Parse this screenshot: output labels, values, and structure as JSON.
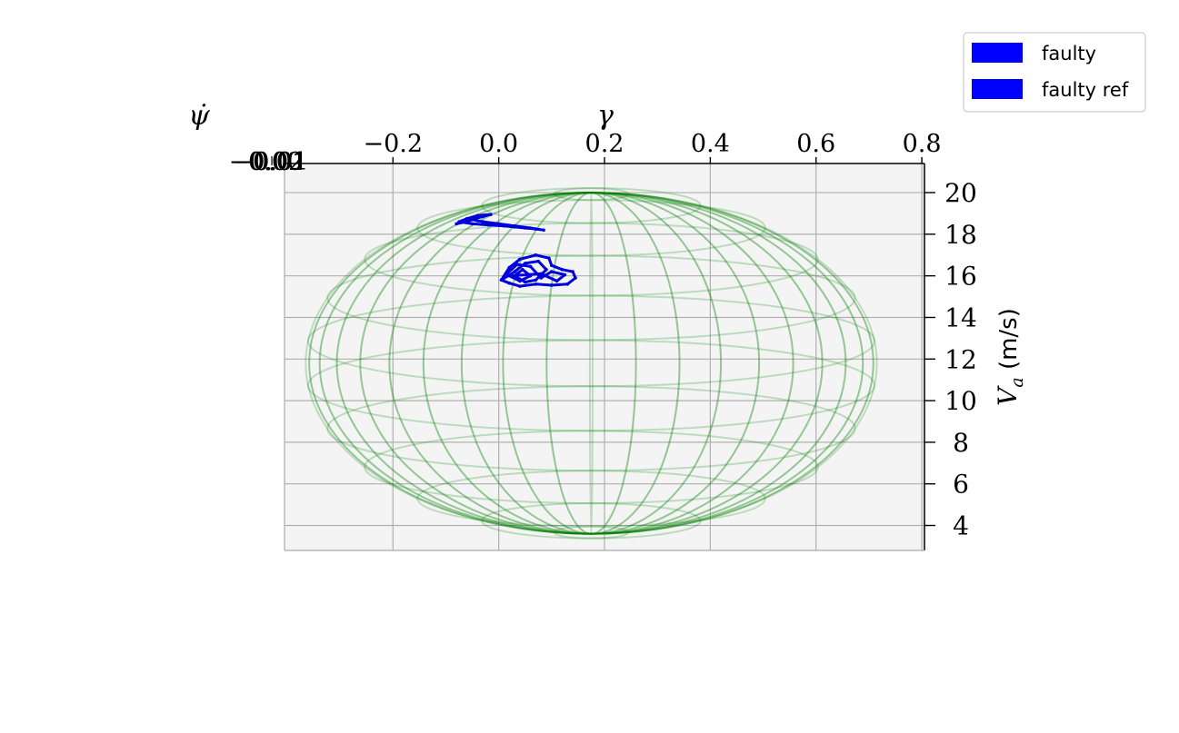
{
  "chart_data": {
    "type": "scatter",
    "axes": {
      "x": {
        "label": "γ",
        "ticks": [
          -0.2,
          0.0,
          0.2,
          0.4,
          0.6,
          0.8
        ],
        "tick_labels": [
          "−0.2",
          "0.0",
          "0.2",
          "0.4",
          "0.6",
          "0.8"
        ],
        "range": [
          -0.405,
          0.805
        ]
      },
      "y": {
        "label": "ψ̇",
        "tick_labels": [
          "−0.02",
          "−0.01",
          "0.00",
          "0.01"
        ]
      },
      "z": {
        "label": "V",
        "label_sub": "a",
        "label_unit": " (m/s)",
        "ticks": [
          4,
          6,
          8,
          10,
          12,
          14,
          16,
          18,
          20
        ],
        "tick_labels": [
          "4",
          "6",
          "8",
          "10",
          "12",
          "14",
          "16",
          "18",
          "20"
        ],
        "range": [
          2.8,
          21.4
        ]
      }
    },
    "grid": true,
    "legend": {
      "placement": "top-right",
      "entries": [
        {
          "label": "faulty",
          "color": "#0000ff"
        },
        {
          "label": "faulty ref",
          "color": "#0000ff"
        }
      ]
    },
    "ellipsoid": {
      "color": "#008000",
      "center": {
        "gamma": 0.175,
        "Va": 11.8
      },
      "semi_axis": {
        "gamma": 0.54,
        "Va": 8.2
      },
      "latitude_lines": 12,
      "meridians": 20
    },
    "series": [
      {
        "color": "#0000dd",
        "points": [
          [
            -0.08,
            18.5
          ],
          [
            -0.06,
            18.6
          ],
          [
            -0.045,
            18.75
          ],
          [
            -0.03,
            18.85
          ],
          [
            -0.015,
            18.95
          ],
          [
            -0.04,
            18.9
          ],
          [
            -0.06,
            18.75
          ],
          [
            -0.075,
            18.6
          ],
          [
            -0.05,
            18.5
          ],
          [
            -0.02,
            18.45
          ],
          [
            0.01,
            18.4
          ],
          [
            0.03,
            18.35
          ],
          [
            0.05,
            18.3
          ],
          [
            0.07,
            18.25
          ],
          [
            0.085,
            18.2
          ],
          [
            0.06,
            18.3
          ],
          [
            0.03,
            18.4
          ],
          [
            0.0,
            18.5
          ],
          [
            -0.03,
            18.6
          ],
          [
            -0.05,
            18.7
          ]
        ]
      },
      {
        "color": "#0000dd",
        "points": [
          [
            0.005,
            15.8
          ],
          [
            0.02,
            16.4
          ],
          [
            0.04,
            16.8
          ],
          [
            0.07,
            17.0
          ],
          [
            0.095,
            16.85
          ],
          [
            0.1,
            16.5
          ],
          [
            0.12,
            16.3
          ],
          [
            0.14,
            16.2
          ],
          [
            0.145,
            15.9
          ],
          [
            0.13,
            15.6
          ],
          [
            0.1,
            15.55
          ],
          [
            0.07,
            15.6
          ],
          [
            0.04,
            15.5
          ],
          [
            0.02,
            15.65
          ],
          [
            0.005,
            15.8
          ],
          [
            0.03,
            16.2
          ],
          [
            0.05,
            16.6
          ],
          [
            0.075,
            16.7
          ],
          [
            0.09,
            16.3
          ],
          [
            0.07,
            15.8
          ],
          [
            0.05,
            15.7
          ],
          [
            0.03,
            16.0
          ],
          [
            0.045,
            16.3
          ],
          [
            0.06,
            16.0
          ],
          [
            0.04,
            15.75
          ],
          [
            0.02,
            16.0
          ],
          [
            0.08,
            16.1
          ],
          [
            0.11,
            15.75
          ],
          [
            0.125,
            16.05
          ],
          [
            0.1,
            16.2
          ],
          [
            0.08,
            15.9
          ],
          [
            0.06,
            16.45
          ],
          [
            0.035,
            16.55
          ],
          [
            0.015,
            16.1
          ]
        ]
      }
    ]
  }
}
